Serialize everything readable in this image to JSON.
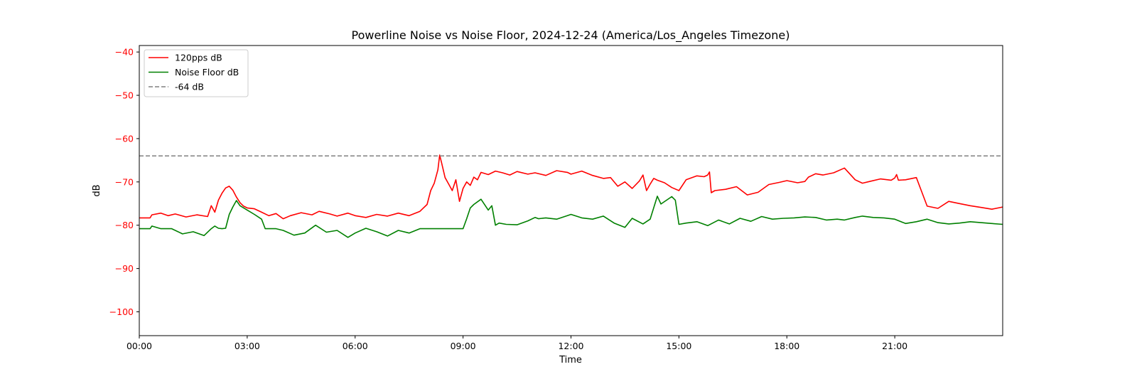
{
  "chart_data": {
    "type": "line",
    "title": "Powerline Noise vs Noise Floor, 2024-12-24 (America/Los_Angeles Timezone)",
    "xlabel": "Time",
    "ylabel": "dB",
    "x_tick_labels": [
      "00:00",
      "03:00",
      "06:00",
      "09:00",
      "12:00",
      "15:00",
      "18:00",
      "21:00"
    ],
    "y_tick_labels": [
      "−100",
      "−90",
      "−80",
      "−70",
      "−60",
      "−50",
      "−40"
    ],
    "ylim": [
      -105.5,
      -38.5
    ],
    "y_ticks": [
      -100,
      -90,
      -80,
      -70,
      -60,
      -50,
      -40
    ],
    "x_unit": "hours since 00:00",
    "xlim": [
      0,
      24
    ],
    "x_ticks": [
      0,
      3,
      6,
      9,
      12,
      15,
      18,
      21
    ],
    "grid": false,
    "legend_position": "top-left",
    "colors": {
      "noise": "#ff0000",
      "floor": "#008000",
      "threshold": "#808080",
      "ylabel": "#ff0000"
    },
    "series": [
      {
        "name": "120pps dB",
        "color": "#ff0000",
        "style": "solid",
        "x": [
          0,
          0.3,
          0.35,
          0.6,
          0.8,
          1.0,
          1.3,
          1.6,
          1.9,
          2.0,
          2.1,
          2.2,
          2.3,
          2.4,
          2.5,
          2.6,
          2.7,
          2.8,
          2.9,
          3.0,
          3.2,
          3.4,
          3.6,
          3.8,
          4.0,
          4.2,
          4.5,
          4.8,
          5.0,
          5.3,
          5.5,
          5.8,
          6.0,
          6.3,
          6.6,
          6.9,
          7.2,
          7.5,
          7.8,
          8.0,
          8.1,
          8.2,
          8.3,
          8.35,
          8.4,
          8.5,
          8.6,
          8.7,
          8.8,
          8.9,
          9.0,
          9.1,
          9.2,
          9.3,
          9.4,
          9.5,
          9.7,
          9.9,
          10.1,
          10.3,
          10.5,
          10.8,
          11.0,
          11.3,
          11.6,
          11.9,
          12.0,
          12.3,
          12.6,
          12.9,
          13.1,
          13.3,
          13.5,
          13.7,
          13.9,
          14.0,
          14.1,
          14.2,
          14.3,
          14.4,
          14.6,
          14.8,
          15.0,
          15.2,
          15.5,
          15.7,
          15.8,
          15.85,
          15.9,
          16.0,
          16.3,
          16.6,
          16.9,
          17.2,
          17.5,
          17.8,
          18.0,
          18.3,
          18.5,
          18.6,
          18.8,
          19.0,
          19.3,
          19.6,
          19.9,
          20.1,
          20.3,
          20.6,
          20.9,
          21.0,
          21.05,
          21.1,
          21.3,
          21.6,
          21.9,
          22.2,
          22.5,
          22.8,
          23.1,
          23.4,
          23.7,
          24.0
        ],
        "values": [
          -78.3,
          -78.3,
          -77.6,
          -77.2,
          -77.8,
          -77.4,
          -78.1,
          -77.6,
          -78.0,
          -75.5,
          -77.0,
          -74.2,
          -72.6,
          -71.4,
          -71.0,
          -71.9,
          -73.5,
          -74.8,
          -75.6,
          -76.0,
          -76.2,
          -77.0,
          -77.8,
          -77.3,
          -78.5,
          -77.8,
          -77.1,
          -77.6,
          -76.8,
          -77.4,
          -77.9,
          -77.2,
          -77.8,
          -78.2,
          -77.5,
          -77.9,
          -77.2,
          -77.8,
          -76.8,
          -75.2,
          -72.0,
          -70.3,
          -67.2,
          -63.8,
          -65.5,
          -69.0,
          -70.5,
          -72.0,
          -69.5,
          -74.5,
          -71.5,
          -70.0,
          -70.8,
          -68.9,
          -69.5,
          -67.8,
          -68.3,
          -67.5,
          -67.9,
          -68.4,
          -67.6,
          -68.2,
          -67.9,
          -68.5,
          -67.4,
          -67.8,
          -68.2,
          -67.5,
          -68.5,
          -69.2,
          -69.0,
          -71.0,
          -70.0,
          -71.5,
          -69.8,
          -68.4,
          -72.0,
          -70.5,
          -69.2,
          -69.6,
          -70.2,
          -71.3,
          -72.0,
          -69.5,
          -68.6,
          -68.8,
          -68.4,
          -67.7,
          -72.5,
          -72.0,
          -71.7,
          -71.1,
          -73.0,
          -72.4,
          -70.6,
          -70.1,
          -69.7,
          -70.2,
          -69.9,
          -68.9,
          -68.1,
          -68.4,
          -67.9,
          -66.8,
          -69.5,
          -70.3,
          -69.9,
          -69.3,
          -69.6,
          -69.1,
          -68.3,
          -69.6,
          -69.5,
          -69.0,
          -75.6,
          -76.1,
          -74.5,
          -75.0,
          -75.5,
          -75.9,
          -76.3,
          -75.8
        ]
      },
      {
        "name": "Noise Floor dB",
        "color": "#008000",
        "style": "solid",
        "x": [
          0,
          0.3,
          0.35,
          0.6,
          0.9,
          1.2,
          1.5,
          1.8,
          2.0,
          2.1,
          2.2,
          2.3,
          2.4,
          2.5,
          2.6,
          2.7,
          2.8,
          3.0,
          3.2,
          3.4,
          3.5,
          3.8,
          4.0,
          4.3,
          4.6,
          4.9,
          5.2,
          5.5,
          5.8,
          6.0,
          6.3,
          6.6,
          6.9,
          7.2,
          7.5,
          7.8,
          8.0,
          8.2,
          8.4,
          8.6,
          8.8,
          9.0,
          9.1,
          9.2,
          9.3,
          9.5,
          9.7,
          9.8,
          9.9,
          10.0,
          10.2,
          10.5,
          10.8,
          11.0,
          11.1,
          11.3,
          11.6,
          11.9,
          12.0,
          12.3,
          12.6,
          12.9,
          13.2,
          13.5,
          13.7,
          14.0,
          14.2,
          14.4,
          14.5,
          14.8,
          14.9,
          15.0,
          15.2,
          15.5,
          15.8,
          16.1,
          16.4,
          16.7,
          17.0,
          17.3,
          17.6,
          17.9,
          18.2,
          18.5,
          18.8,
          19.1,
          19.4,
          19.6,
          19.9,
          20.1,
          20.4,
          20.7,
          21.0,
          21.3,
          21.6,
          21.9,
          22.2,
          22.5,
          22.8,
          23.1,
          23.4,
          23.7,
          24.0
        ],
        "values": [
          -80.8,
          -80.8,
          -80.2,
          -80.8,
          -80.8,
          -82.0,
          -81.5,
          -82.4,
          -80.8,
          -80.2,
          -80.7,
          -80.8,
          -80.7,
          -77.5,
          -75.8,
          -74.3,
          -75.5,
          -76.5,
          -77.5,
          -78.6,
          -80.8,
          -80.8,
          -81.2,
          -82.3,
          -81.8,
          -80.0,
          -81.6,
          -81.2,
          -82.8,
          -81.8,
          -80.7,
          -81.5,
          -82.5,
          -81.2,
          -81.8,
          -80.8,
          -80.8,
          -80.8,
          -80.8,
          -80.8,
          -80.8,
          -80.8,
          -78.5,
          -76.0,
          -75.2,
          -74.0,
          -76.5,
          -75.5,
          -80.0,
          -79.5,
          -79.8,
          -79.9,
          -79.0,
          -78.2,
          -78.5,
          -78.3,
          -78.6,
          -77.8,
          -77.5,
          -78.3,
          -78.6,
          -77.9,
          -79.5,
          -80.5,
          -78.4,
          -79.7,
          -78.6,
          -73.3,
          -75.1,
          -73.4,
          -74.2,
          -79.8,
          -79.5,
          -79.2,
          -80.1,
          -78.8,
          -79.7,
          -78.4,
          -79.1,
          -78.0,
          -78.6,
          -78.4,
          -78.3,
          -78.1,
          -78.2,
          -78.8,
          -78.6,
          -78.8,
          -78.2,
          -77.9,
          -78.2,
          -78.3,
          -78.6,
          -79.6,
          -79.2,
          -78.6,
          -79.4,
          -79.7,
          -79.5,
          -79.2,
          -79.4,
          -79.6,
          -79.8
        ]
      },
      {
        "name": "-64 dB",
        "color": "#808080",
        "style": "dashed",
        "x": [
          0,
          24
        ],
        "values": [
          -64,
          -64
        ]
      }
    ]
  }
}
